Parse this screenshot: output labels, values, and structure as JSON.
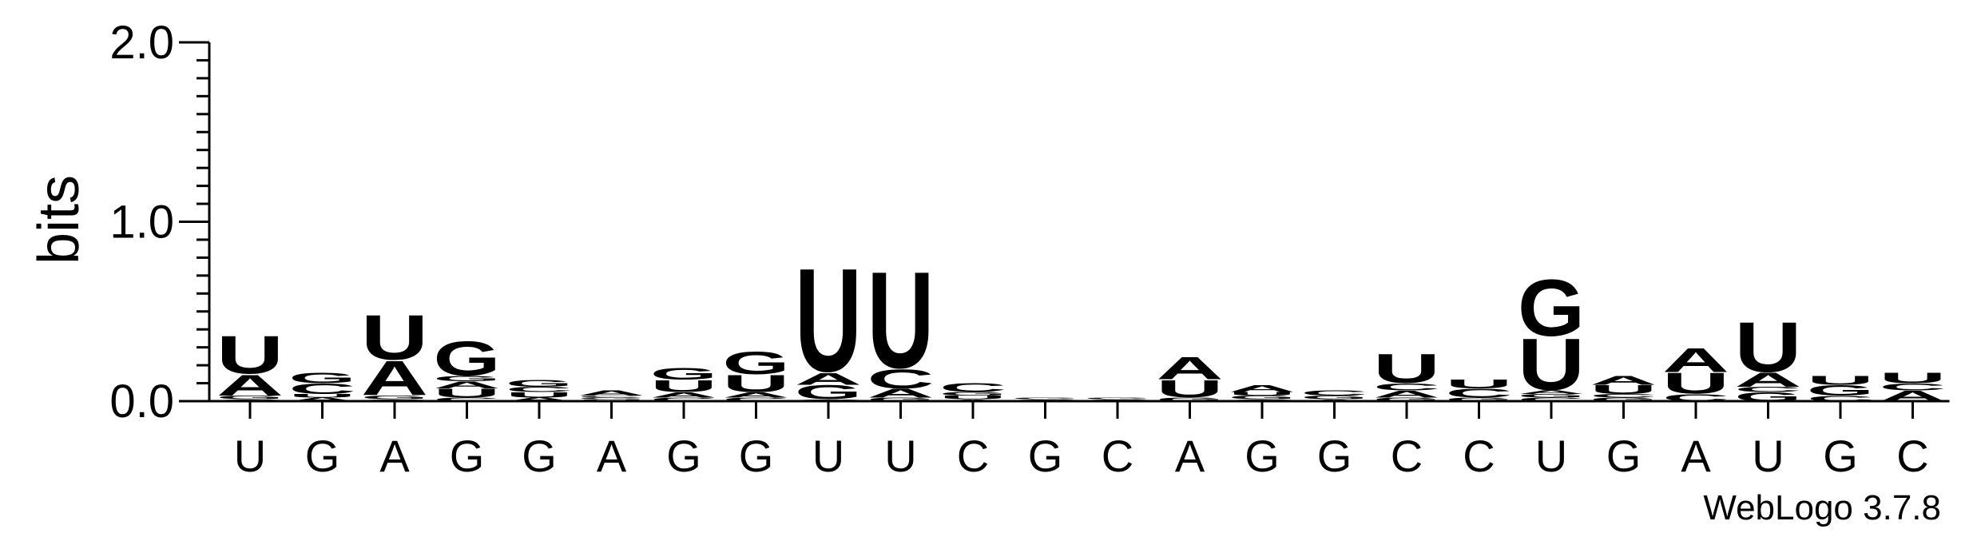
{
  "chart_data": {
    "type": "sequence-logo",
    "ylabel": "bits",
    "ylim": [
      0,
      2.0
    ],
    "yticks": [
      {
        "value": 0.0,
        "label": "0.0"
      },
      {
        "value": 1.0,
        "label": "1.0"
      },
      {
        "value": 2.0,
        "label": "2.0"
      }
    ],
    "xlabels": [
      "U",
      "G",
      "A",
      "G",
      "G",
      "A",
      "G",
      "G",
      "U",
      "U",
      "C",
      "G",
      "C",
      "A",
      "G",
      "G",
      "C",
      "C",
      "U",
      "G",
      "A",
      "U",
      "G",
      "C"
    ],
    "colors": {
      "A": "#f28e1c",
      "U": "#f28e1c",
      "G": "#1e1ee6",
      "C": "#1e1ee6"
    },
    "positions": [
      [
        [
          "C",
          0.01
        ],
        [
          "G",
          0.02
        ],
        [
          "A",
          0.12
        ],
        [
          "U",
          0.22
        ]
      ],
      [
        [
          "A",
          0.02
        ],
        [
          "U",
          0.02
        ],
        [
          "C",
          0.06
        ],
        [
          "G",
          0.06
        ]
      ],
      [
        [
          "C",
          0.01
        ],
        [
          "G",
          0.02
        ],
        [
          "A",
          0.2
        ],
        [
          "U",
          0.26
        ]
      ],
      [
        [
          "C",
          0.02
        ],
        [
          "U",
          0.05
        ],
        [
          "A",
          0.04
        ],
        [
          "G",
          0.03
        ],
        [
          "G",
          0.2
        ]
      ],
      [
        [
          "A",
          0.02
        ],
        [
          "U",
          0.03
        ],
        [
          "C",
          0.03
        ],
        [
          "G",
          0.04
        ]
      ],
      [
        [
          "U",
          0.01
        ],
        [
          "G",
          0.01
        ],
        [
          "C",
          0.01
        ],
        [
          "A",
          0.03
        ]
      ],
      [
        [
          "C",
          0.02
        ],
        [
          "A",
          0.03
        ],
        [
          "U",
          0.07
        ],
        [
          "G",
          0.07
        ]
      ],
      [
        [
          "C",
          0.02
        ],
        [
          "A",
          0.03
        ],
        [
          "U",
          0.1
        ],
        [
          "G",
          0.13
        ]
      ],
      [
        [
          "C",
          0.01
        ],
        [
          "G",
          0.08
        ],
        [
          "A",
          0.07
        ],
        [
          "U",
          0.6
        ]
      ],
      [
        [
          "G",
          0.02
        ],
        [
          "A",
          0.05
        ],
        [
          "C",
          0.11
        ],
        [
          "U",
          0.56
        ]
      ],
      [
        [
          "A",
          0.01
        ],
        [
          "U",
          0.02
        ],
        [
          "G",
          0.02
        ],
        [
          "C",
          0.05
        ]
      ],
      [
        [
          "C",
          0.01
        ],
        [
          "G",
          0.01
        ]
      ],
      [
        [
          "C",
          0.01
        ],
        [
          "G",
          0.01
        ]
      ],
      [
        [
          "G",
          0.02
        ],
        [
          "U",
          0.1
        ],
        [
          "A",
          0.13
        ]
      ],
      [
        [
          "C",
          0.01
        ],
        [
          "G",
          0.02
        ],
        [
          "U",
          0.02
        ],
        [
          "A",
          0.04
        ]
      ],
      [
        [
          "A",
          0.01
        ],
        [
          "G",
          0.02
        ],
        [
          "C",
          0.03
        ]
      ],
      [
        [
          "G",
          0.02
        ],
        [
          "A",
          0.04
        ],
        [
          "C",
          0.04
        ],
        [
          "U",
          0.17
        ]
      ],
      [
        [
          "G",
          0.02
        ],
        [
          "C",
          0.05
        ],
        [
          "U",
          0.05
        ]
      ],
      [
        [
          "C",
          0.02
        ],
        [
          "G",
          0.02
        ],
        [
          "A",
          0.02
        ],
        [
          "U",
          0.3
        ],
        [
          "G",
          0.33
        ]
      ],
      [
        [
          "G",
          0.02
        ],
        [
          "C",
          0.02
        ],
        [
          "U",
          0.05
        ],
        [
          "A",
          0.05
        ]
      ],
      [
        [
          "C",
          0.04
        ],
        [
          "U",
          0.12
        ],
        [
          "A",
          0.14
        ]
      ],
      [
        [
          "G",
          0.05
        ],
        [
          "C",
          0.03
        ],
        [
          "A",
          0.08
        ],
        [
          "U",
          0.29
        ]
      ],
      [
        [
          "C",
          0.03
        ],
        [
          "G",
          0.06
        ],
        [
          "U",
          0.05
        ]
      ],
      [
        [
          "A",
          0.06
        ],
        [
          "C",
          0.04
        ],
        [
          "U",
          0.06
        ]
      ]
    ]
  },
  "footer": {
    "credit": "WebLogo 3.7.8"
  }
}
